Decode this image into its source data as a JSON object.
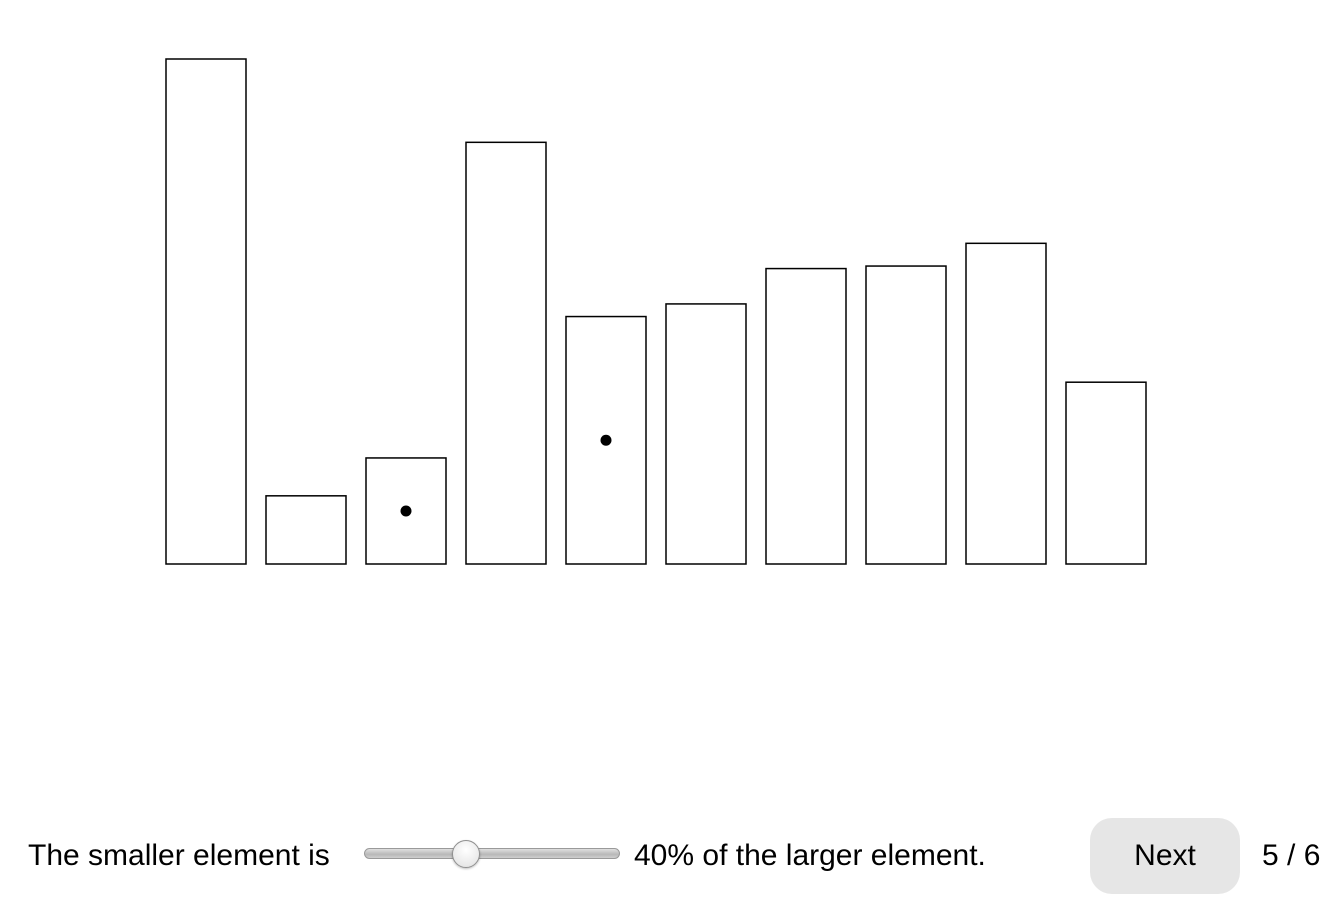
{
  "chart_data": {
    "type": "bar",
    "title": "",
    "xlabel": "",
    "ylabel": "",
    "categories": [
      "",
      "",
      "",
      "",
      "",
      "",
      "",
      "",
      "",
      ""
    ],
    "values": [
      100,
      13.5,
      21,
      83.5,
      49,
      51.5,
      58.5,
      59,
      63.5,
      36
    ],
    "ylim": [
      0,
      100
    ],
    "grid": false,
    "axes_visible": false,
    "bar_fill": "#ffffff",
    "bar_stroke": "#000000",
    "marked_bars": [
      2,
      4
    ],
    "mark_color": "#000000"
  },
  "prompt": {
    "before": "The smaller element is",
    "after": "40% of the larger element."
  },
  "slider": {
    "value": 40,
    "min": 0,
    "max": 100
  },
  "next_button": {
    "label": "Next"
  },
  "progress": {
    "text": "5 / 6"
  }
}
